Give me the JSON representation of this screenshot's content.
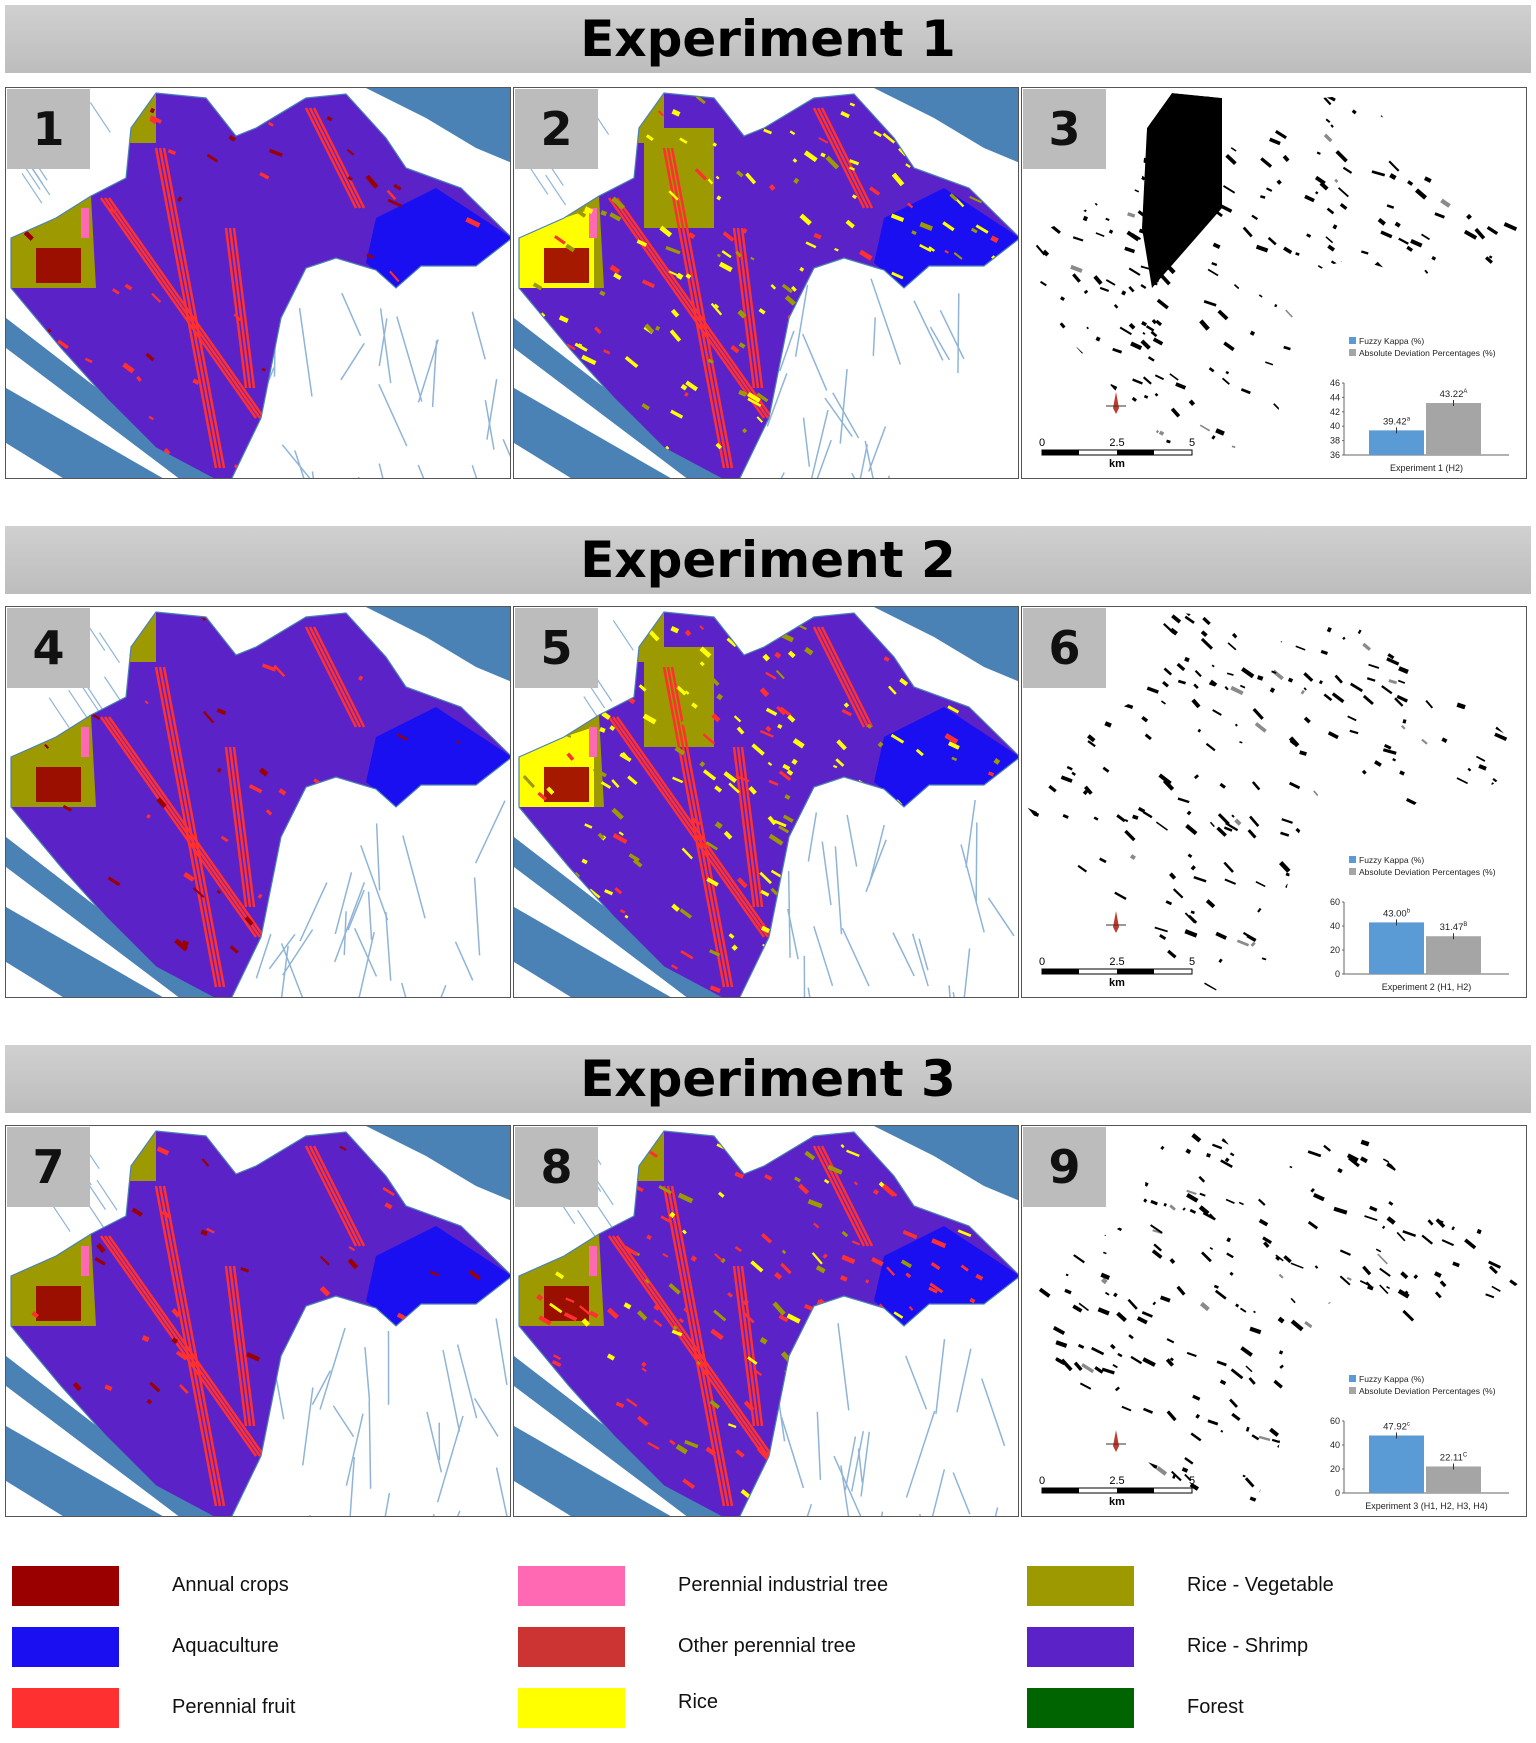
{
  "experiments": [
    {
      "title": "Experiment 1",
      "panels": [
        "1",
        "2",
        "3"
      ],
      "chart": {
        "type": "bar",
        "categories": [
          "Experiment 1 (H2)"
        ],
        "series": [
          {
            "name": "Fuzzy Kappa (%)",
            "value": 39.42,
            "label": "39.42",
            "sup": "a",
            "color": "#5b9bd5"
          },
          {
            "name": "Absolute Deviation Percentages (%)",
            "value": 43.22,
            "label": "43.22",
            "sup": "A",
            "color": "#a5a5a5"
          }
        ],
        "ylim": [
          36,
          46
        ],
        "ticks": [
          "46",
          "44",
          "42",
          "40",
          "38",
          "36"
        ],
        "xlabel": "Experiment 1 (H2)"
      }
    },
    {
      "title": "Experiment 2",
      "panels": [
        "4",
        "5",
        "6"
      ],
      "chart": {
        "type": "bar",
        "categories": [
          "Experiment 2 (H1, H2)"
        ],
        "series": [
          {
            "name": "Fuzzy Kappa (%)",
            "value": 43.0,
            "label": "43.00",
            "sup": "b",
            "color": "#5b9bd5"
          },
          {
            "name": "Absolute Deviation Percentages (%)",
            "value": 31.47,
            "label": "31.47",
            "sup": "B",
            "color": "#a5a5a5"
          }
        ],
        "ylim": [
          0,
          60
        ],
        "ticks": [
          "60",
          "40",
          "20",
          "0"
        ],
        "xlabel": "Experiment 2 (H1, H2)"
      }
    },
    {
      "title": "Experiment 3",
      "panels": [
        "7",
        "8",
        "9"
      ],
      "chart": {
        "type": "bar",
        "categories": [
          "Experiment 3 (H1, H2, H3, H4)"
        ],
        "series": [
          {
            "name": "Fuzzy Kappa (%)",
            "value": 47.92,
            "label": "47.92",
            "sup": "c",
            "color": "#5b9bd5"
          },
          {
            "name": "Absolute Deviation Percentages (%)",
            "value": 22.11,
            "label": "22.11",
            "sup": "C",
            "color": "#a5a5a5"
          }
        ],
        "ylim": [
          0,
          60
        ],
        "ticks": [
          "60",
          "40",
          "20",
          "0"
        ],
        "xlabel": "Experiment 3 (H1, H2, H3, H4)"
      }
    }
  ],
  "scalebar": {
    "labels": [
      "0",
      "2.5",
      "5"
    ],
    "unit": "km"
  },
  "legend": [
    {
      "label": "Annual crops",
      "color": "#9b0000"
    },
    {
      "label": "Aquaculture",
      "color": "#1a0ff0"
    },
    {
      "label": "Perennial fruit",
      "color": "#ff3030"
    },
    {
      "label": "Perennial industrial tree",
      "color": "#ff69b4"
    },
    {
      "label": "Other perennial tree",
      "color": "#cc3333"
    },
    {
      "label": "Rice",
      "color": "#ffff00"
    },
    {
      "label": "Rice - Vegetable",
      "color": "#9c9a00"
    },
    {
      "label": "Rice - Shrimp",
      "color": "#5b22c8"
    },
    {
      "label": "Forest",
      "color": "#006400"
    }
  ],
  "colors": {
    "river": "#4a82b5",
    "canal": "#8fb4d8",
    "header": "#c6c6c6",
    "badge": "#bcbcbc"
  }
}
